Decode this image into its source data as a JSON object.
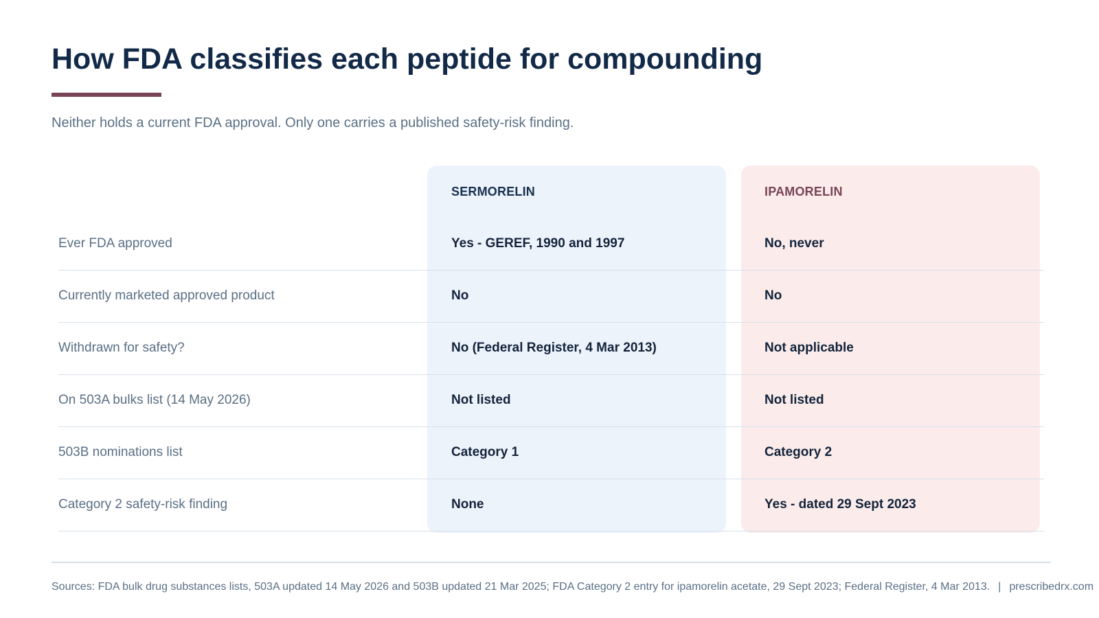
{
  "header": {
    "title": "How FDA classifies each peptide for compounding",
    "subtitle": "Neither holds a current FDA approval. Only one carries a published safety-risk finding."
  },
  "columns": {
    "sermorelin": "SERMORELIN",
    "ipamorelin": "IPAMORELIN"
  },
  "rows": [
    {
      "label": "Ever FDA approved",
      "sermorelin": "Yes - GEREF, 1990 and 1997",
      "ipamorelin": "No, never"
    },
    {
      "label": "Currently marketed approved product",
      "sermorelin": "No",
      "ipamorelin": "No"
    },
    {
      "label": "Withdrawn for safety?",
      "sermorelin": "No (Federal Register, 4 Mar 2013)",
      "ipamorelin": "Not applicable"
    },
    {
      "label": "On 503A bulks list (14 May 2026)",
      "sermorelin": "Not listed",
      "ipamorelin": "Not listed"
    },
    {
      "label": "503B nominations list",
      "sermorelin": "Category 1",
      "ipamorelin": "Category 2"
    },
    {
      "label": "Category 2 safety-risk finding",
      "sermorelin": "None",
      "ipamorelin": "Yes - dated 29 Sept 2023"
    }
  ],
  "footer": {
    "sources": "Sources: FDA bulk drug substances lists, 503A updated 14 May 2026 and 503B updated 21 Mar 2025; FDA Category 2 entry for ipamorelin acetate, 29 Sept 2023; Federal Register, 4 Mar 2013.",
    "separator": "|",
    "site": "prescribedrx.com"
  },
  "colors": {
    "title": "#122a47",
    "accent": "#7a4458",
    "sermorelin_bg": "#edf3fb",
    "ipamorelin_bg": "#fbeceb"
  }
}
